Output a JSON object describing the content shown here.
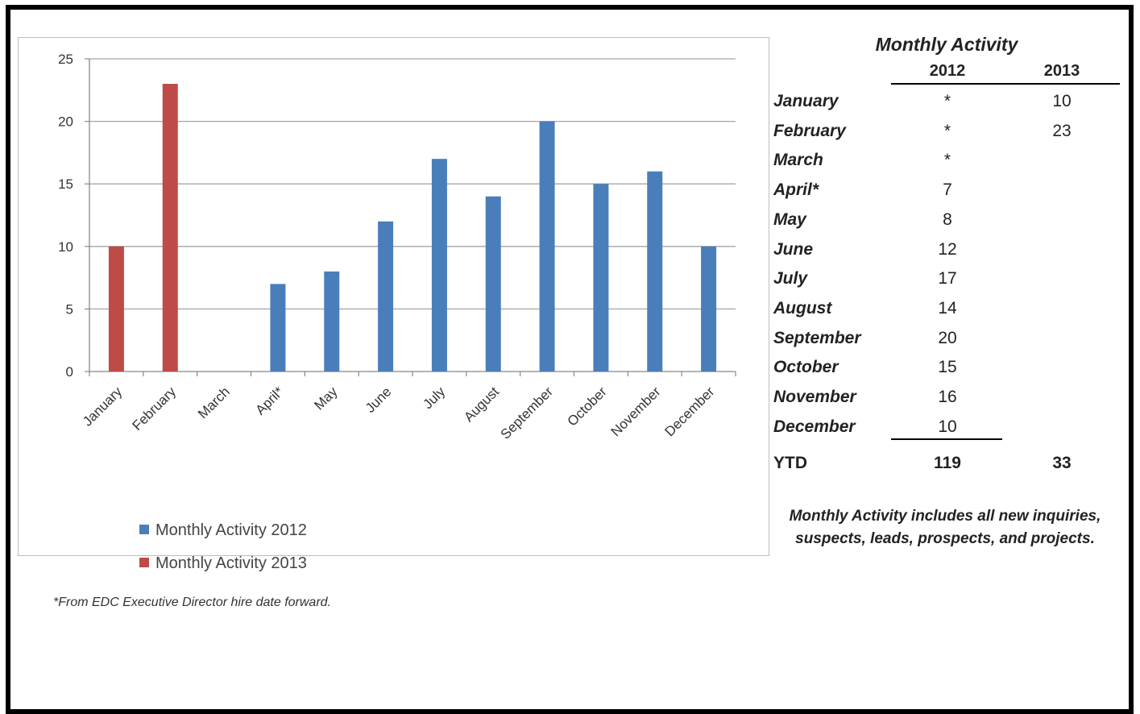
{
  "chart_data": {
    "type": "bar",
    "categories": [
      "January",
      "February",
      "March",
      "April*",
      "May",
      "June",
      "July",
      "August",
      "September",
      "October",
      "November",
      "December"
    ],
    "series": [
      {
        "name": "Monthly Activity 2012",
        "color": "#4a7ebb",
        "values": [
          null,
          null,
          null,
          7,
          8,
          12,
          17,
          14,
          20,
          15,
          16,
          10
        ]
      },
      {
        "name": "Monthly Activity 2013",
        "color": "#be4b48",
        "values": [
          10,
          23,
          null,
          null,
          null,
          null,
          null,
          null,
          null,
          null,
          null,
          null
        ]
      }
    ],
    "ylim": [
      0,
      25
    ],
    "yticks": [
      0,
      5,
      10,
      15,
      20,
      25
    ],
    "grid": true,
    "legend_position": "bottom-left"
  },
  "legend": {
    "series_2012": "Monthly Activity 2012",
    "series_2013": "Monthly Activity 2013"
  },
  "footnote": "*From EDC Executive Director hire date forward.",
  "table": {
    "title": "Monthly Activity",
    "col_2012": "2012",
    "col_2013": "2013",
    "rows": [
      {
        "month": "January",
        "v2012": "*",
        "v2013": "10"
      },
      {
        "month": "February",
        "v2012": "*",
        "v2013": "23"
      },
      {
        "month": "March",
        "v2012": "*",
        "v2013": ""
      },
      {
        "month": "April*",
        "v2012": "7",
        "v2013": ""
      },
      {
        "month": "May",
        "v2012": "8",
        "v2013": ""
      },
      {
        "month": "June",
        "v2012": "12",
        "v2013": ""
      },
      {
        "month": "July",
        "v2012": "17",
        "v2013": ""
      },
      {
        "month": "August",
        "v2012": "14",
        "v2013": ""
      },
      {
        "month": "September",
        "v2012": "20",
        "v2013": ""
      },
      {
        "month": "October",
        "v2012": "15",
        "v2013": ""
      },
      {
        "month": "November",
        "v2012": "16",
        "v2013": ""
      },
      {
        "month": "December",
        "v2012": "10",
        "v2013": ""
      }
    ],
    "ytd_label": "YTD",
    "ytd_2012": "119",
    "ytd_2013": "33",
    "note": "Monthly Activity includes all new inquiries, suspects, leads, prospects, and projects."
  }
}
